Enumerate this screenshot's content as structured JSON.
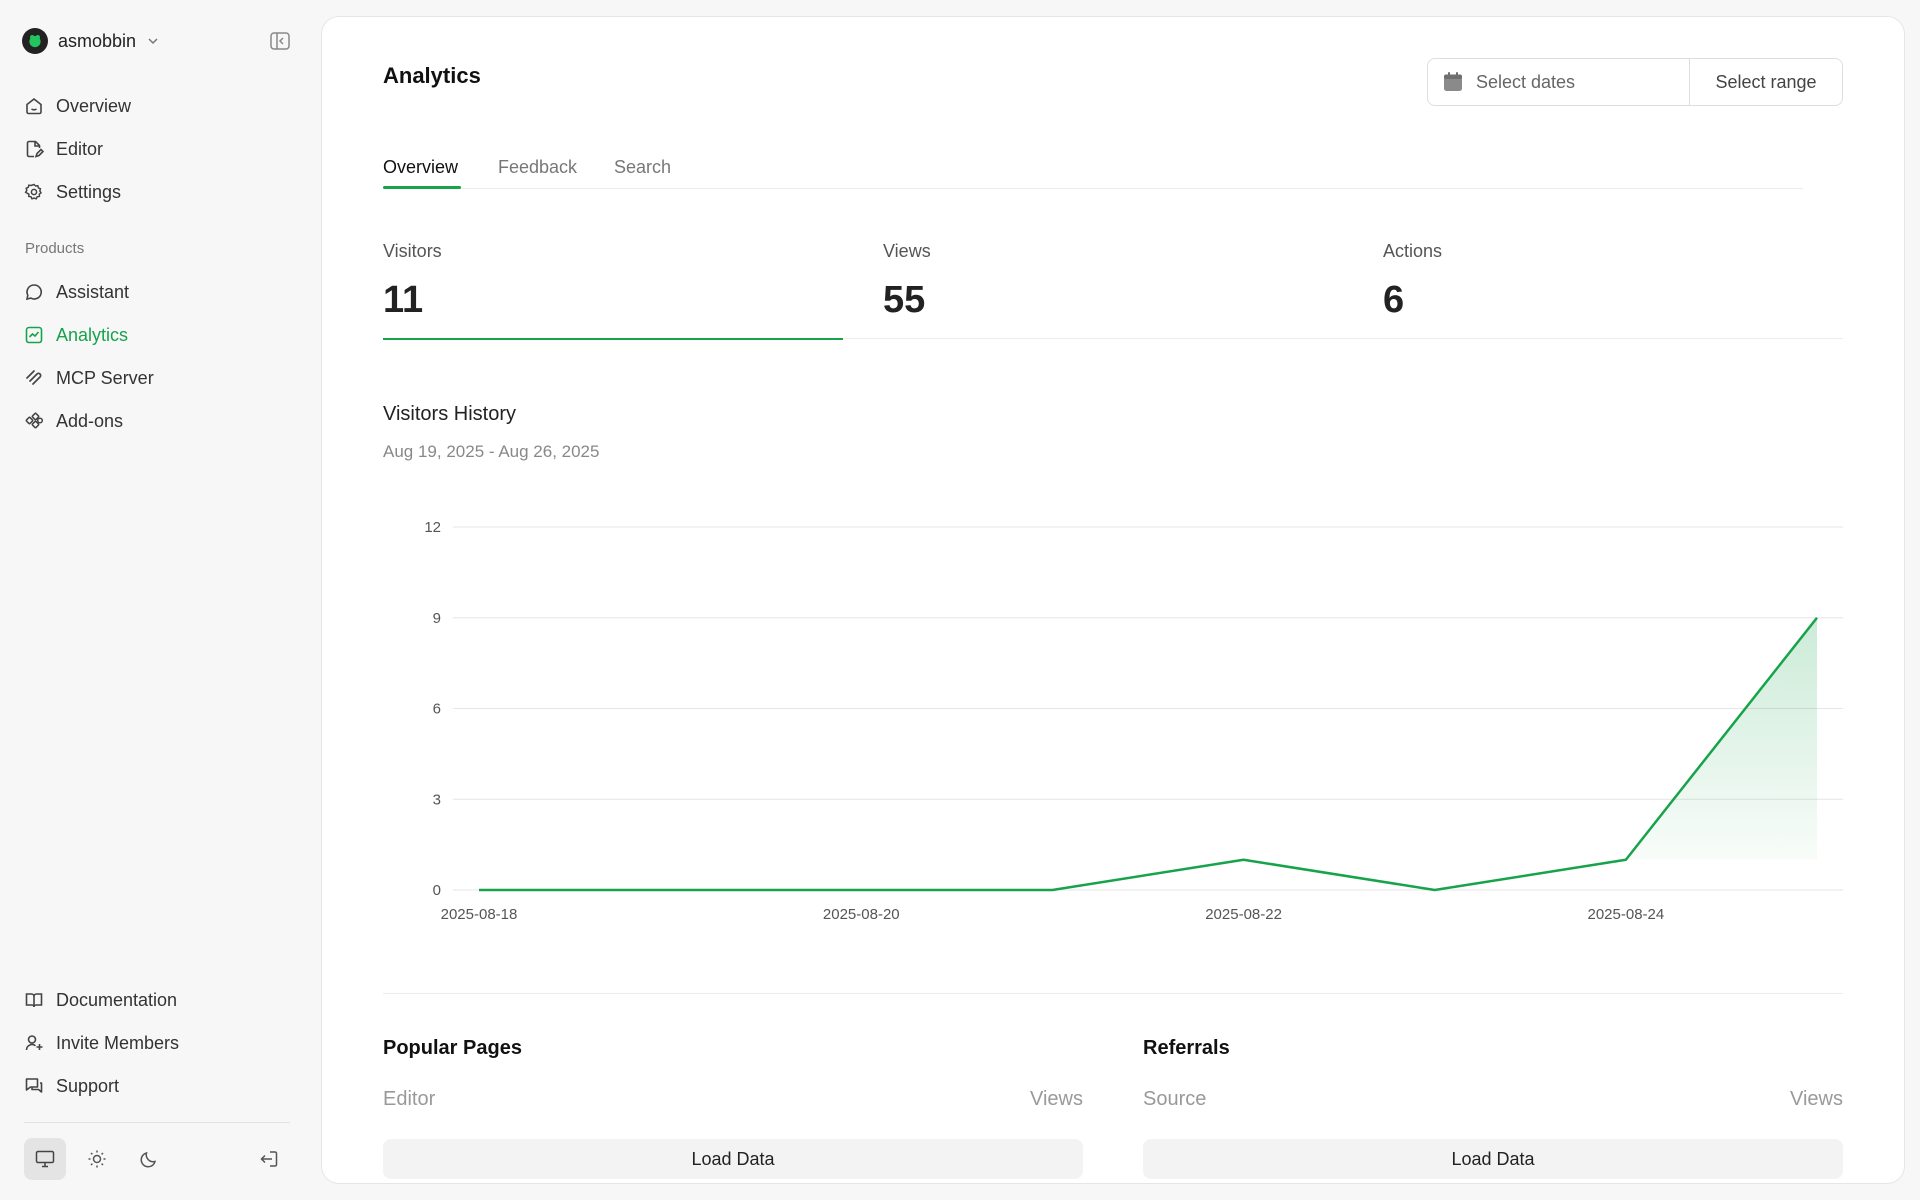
{
  "sidebar": {
    "org_name": "asmobbin",
    "nav_top": [
      {
        "label": "Overview",
        "icon": "home-icon"
      },
      {
        "label": "Editor",
        "icon": "edit-file-icon"
      },
      {
        "label": "Settings",
        "icon": "gear-icon"
      }
    ],
    "section_label": "Products",
    "nav_products": [
      {
        "label": "Assistant",
        "icon": "chat-icon"
      },
      {
        "label": "Analytics",
        "icon": "chart-icon",
        "active": true
      },
      {
        "label": "MCP Server",
        "icon": "mcp-icon"
      },
      {
        "label": "Add-ons",
        "icon": "addons-icon"
      }
    ],
    "nav_bottom": [
      {
        "label": "Documentation",
        "icon": "book-icon"
      },
      {
        "label": "Invite Members",
        "icon": "user-plus-icon"
      },
      {
        "label": "Support",
        "icon": "support-icon"
      }
    ],
    "theme_options": [
      "system",
      "light",
      "dark"
    ],
    "active_theme": "system"
  },
  "main": {
    "title": "Analytics",
    "date_picker": {
      "placeholder": "Select dates",
      "range_label": "Select range"
    },
    "tabs": [
      "Overview",
      "Feedback",
      "Search"
    ],
    "active_tab": "Overview",
    "stats": [
      {
        "label": "Visitors",
        "value": "11"
      },
      {
        "label": "Views",
        "value": "55"
      },
      {
        "label": "Actions",
        "value": "6"
      }
    ],
    "chart_title": "Visitors History",
    "chart_subtitle": "Aug 19, 2025 - Aug 26, 2025",
    "popular_pages": {
      "title": "Popular Pages",
      "col1": "Editor",
      "col2": "Views",
      "button": "Load Data"
    },
    "referrals": {
      "title": "Referrals",
      "col1": "Source",
      "col2": "Views",
      "button": "Load Data"
    }
  },
  "colors": {
    "accent": "#16a34a"
  },
  "chart_data": {
    "type": "area",
    "x": [
      "2025-08-18",
      "2025-08-19",
      "2025-08-20",
      "2025-08-21",
      "2025-08-22",
      "2025-08-23",
      "2025-08-24",
      "2025-08-25"
    ],
    "series": [
      {
        "values": [
          0,
          0,
          0,
          0,
          1,
          0,
          1,
          9
        ]
      }
    ],
    "x_tick_labels": [
      "2025-08-18",
      "2025-08-20",
      "2025-08-22",
      "2025-08-24"
    ],
    "y_ticks": [
      0,
      3,
      6,
      9,
      12
    ],
    "ylim": [
      0,
      12
    ],
    "grid": true,
    "fill_last_segment": true
  }
}
